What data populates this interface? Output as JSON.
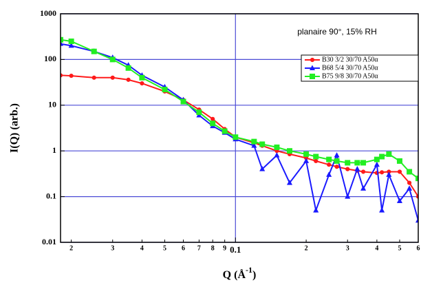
{
  "chart_data": {
    "type": "line",
    "annotation": "planaire 90°, 15% RH",
    "xlabel": {
      "text": "Q (Å",
      "superscript": "-1",
      "suffix": ")"
    },
    "ylabel": "I(Q) (arb.)",
    "x": [
      0.018,
      0.02,
      0.025,
      0.03,
      0.035,
      0.04,
      0.05,
      0.06,
      0.07,
      0.08,
      0.09,
      0.1,
      0.12,
      0.13,
      0.15,
      0.17,
      0.2,
      0.22,
      0.25,
      0.27,
      0.3,
      0.33,
      0.35,
      0.4,
      0.42,
      0.45,
      0.5,
      0.55,
      0.6
    ],
    "series": [
      {
        "name": "B30 3/2 30/70 A50α",
        "color": "#ff1a1a",
        "marker": "circle",
        "values": [
          45,
          44,
          40,
          40,
          36,
          30,
          20,
          13,
          8,
          5,
          3,
          2,
          1.5,
          1.3,
          1,
          0.85,
          0.7,
          0.6,
          0.5,
          0.45,
          0.4,
          0.37,
          0.35,
          0.33,
          0.34,
          0.35,
          0.35,
          0.2,
          0.1
        ]
      },
      {
        "name": "B68 5/4 30/70 A50α",
        "color": "#1a1aff",
        "marker": "triangle",
        "values": [
          220,
          200,
          150,
          110,
          75,
          45,
          25,
          13,
          6,
          3.5,
          2.5,
          1.8,
          1.3,
          0.4,
          0.8,
          0.2,
          0.6,
          0.05,
          0.3,
          0.8,
          0.1,
          0.4,
          0.15,
          0.5,
          0.05,
          0.3,
          0.08,
          0.15,
          0.03
        ]
      },
      {
        "name": "B75 9/8 30/70 A50α",
        "color": "#22ee22",
        "marker": "square",
        "values": [
          270,
          250,
          150,
          100,
          65,
          40,
          22,
          12,
          7,
          4,
          2.7,
          2,
          1.6,
          1.4,
          1.2,
          1,
          0.85,
          0.75,
          0.65,
          0.6,
          0.55,
          0.55,
          0.55,
          0.65,
          0.75,
          0.85,
          0.6,
          0.35,
          0.25
        ]
      }
    ],
    "xscale": "log",
    "yscale": "log",
    "xlim": [
      0.018,
      0.6
    ],
    "ylim": [
      0.01,
      1000
    ],
    "xticks": [
      {
        "value": 0.02,
        "label": "2"
      },
      {
        "value": 0.03,
        "label": "3"
      },
      {
        "value": 0.04,
        "label": "4"
      },
      {
        "value": 0.05,
        "label": "5"
      },
      {
        "value": 0.06,
        "label": "6"
      },
      {
        "value": 0.07,
        "label": "7"
      },
      {
        "value": 0.08,
        "label": "8"
      },
      {
        "value": 0.09,
        "label": "9"
      },
      0.1,
      {
        "value": 0.2,
        "label": "2"
      },
      {
        "value": 0.3,
        "label": "3"
      },
      {
        "value": 0.4,
        "label": "4"
      },
      {
        "value": 0.5,
        "label": "5"
      },
      {
        "value": 0.6,
        "label": "6"
      }
    ],
    "yticks": [
      0.01,
      0.1,
      1,
      10,
      100,
      1000
    ],
    "xgrid": [
      0.1
    ],
    "grid_color": "#4a4ad6",
    "legend": "upper right"
  }
}
